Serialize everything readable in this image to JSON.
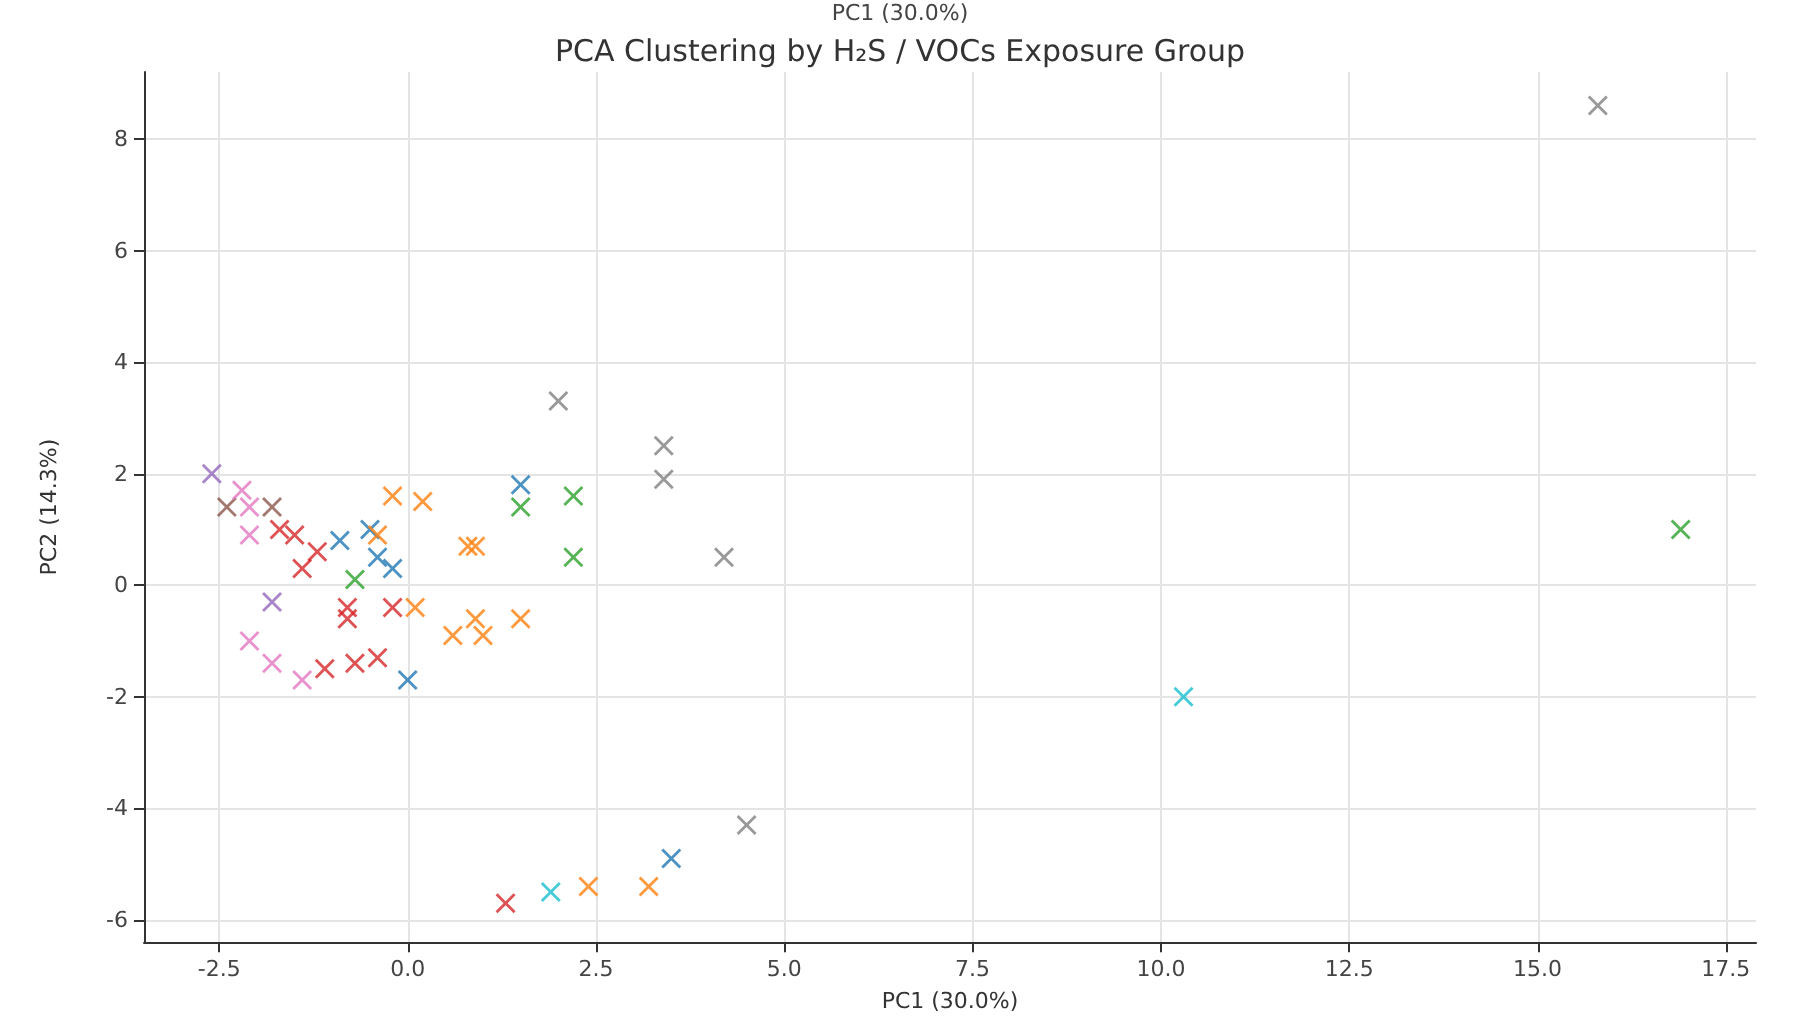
{
  "chart_data": {
    "type": "scatter",
    "title": "PCA Clustering by H₂S / VOCs Exposure Group",
    "xlabel": "PC1 (30.0%)",
    "ylabel": "PC2 (14.3%)",
    "annotations": [
      "PC1 (30.0%)"
    ],
    "xlim": [
      -3.5,
      17.9
    ],
    "xticks": [
      -2.5,
      {
        "value": 0,
        "label": "0.0"
      },
      2.5,
      {
        "value": 5,
        "label": "5.0"
      },
      7.5,
      {
        "value": 10,
        "label": "10.0"
      },
      12.5,
      {
        "value": 15,
        "label": "15.0"
      },
      17.5
    ],
    "ylim": [
      -6.4,
      9.2
    ],
    "yticks": [
      -6,
      -4,
      -2,
      0,
      2,
      4,
      6,
      8
    ],
    "grid": true,
    "marker": "cross",
    "series": [
      {
        "color": "#1f77b4",
        "x": [
          -0.9,
          -0.4,
          -0.2,
          -0.5,
          0.0,
          1.5,
          3.5
        ],
        "values": [
          0.8,
          0.5,
          0.3,
          1.0,
          -1.7,
          1.8,
          -4.9
        ]
      },
      {
        "color": "#ff7f0e",
        "x": [
          -0.2,
          0.2,
          -0.4,
          0.1,
          0.6,
          1.0,
          0.9,
          0.8,
          0.9,
          1.5,
          2.4,
          3.2
        ],
        "values": [
          1.6,
          1.5,
          0.9,
          -0.4,
          -0.9,
          -0.9,
          0.7,
          0.7,
          -0.6,
          -0.6,
          -5.4,
          -5.4
        ]
      },
      {
        "color": "#2ca02c",
        "x": [
          2.2,
          1.5,
          2.2,
          -0.7,
          16.9
        ],
        "values": [
          1.6,
          1.4,
          0.5,
          0.1,
          1.0
        ]
      },
      {
        "color": "#d62728",
        "x": [
          -1.5,
          -1.2,
          -1.4,
          -1.7,
          -0.8,
          -0.8,
          -0.2,
          -1.1,
          -0.7,
          -0.4,
          1.3
        ],
        "values": [
          0.9,
          0.6,
          0.3,
          1.0,
          -0.4,
          -0.6,
          -0.4,
          -1.5,
          -1.4,
          -1.3,
          -5.7
        ]
      },
      {
        "color": "#9467bd",
        "x": [
          -2.6,
          -1.8
        ],
        "values": [
          2.0,
          -0.3
        ]
      },
      {
        "color": "#8c564b",
        "x": [
          -2.4,
          -1.8
        ],
        "values": [
          1.4,
          1.4
        ]
      },
      {
        "color": "#e377c2",
        "x": [
          -2.2,
          -2.1,
          -2.1,
          -2.1,
          -1.8,
          -1.4
        ],
        "values": [
          1.7,
          1.4,
          0.9,
          -1.0,
          -1.4,
          -1.7
        ]
      },
      {
        "color": "#7f7f7f",
        "x": [
          2.0,
          3.4,
          3.4,
          4.2,
          4.5,
          15.8
        ],
        "values": [
          3.3,
          2.5,
          1.9,
          0.5,
          -4.3,
          8.6
        ]
      },
      {
        "color": "#17becf",
        "x": [
          10.3,
          1.9
        ],
        "values": [
          -2.0,
          -5.5
        ]
      }
    ]
  }
}
